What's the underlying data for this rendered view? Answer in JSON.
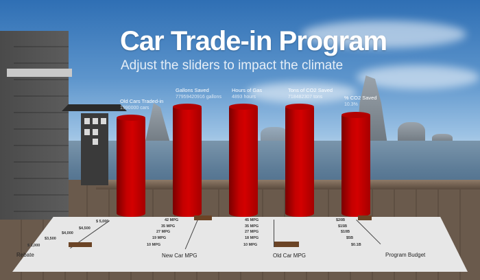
{
  "title": "Car Trade-in Program",
  "subtitle": "Adjust the sliders to impact the climate",
  "stats": [
    {
      "label": "Old Cars Traded-in",
      "value": "1990000 cars"
    },
    {
      "label": "Gallons Saved",
      "value": "77959420916 gallons"
    },
    {
      "label": "Hours of Gas",
      "value": "4893 hours"
    },
    {
      "label": "Tons of CO2 Saved",
      "value": "718482307 tons"
    },
    {
      "label": "% CO2 Saved",
      "value": "10.3%"
    }
  ],
  "sliders": [
    {
      "label": "Rebate",
      "ticks": [
        "$ 5,000",
        "$4,500",
        "$4,000",
        "$3,500",
        "$ 1,000"
      ]
    },
    {
      "label": "New Car MPG",
      "ticks": [
        "42 MPG",
        "35 MPG",
        "27 MPG",
        "19 MPG",
        "10 MPG"
      ]
    },
    {
      "label": "Old Car MPG",
      "ticks": [
        "45 MPG",
        "35 MPG",
        "27 MPG",
        "18 MPG",
        "10 MPG"
      ]
    },
    {
      "label": "Program Budget",
      "ticks": [
        "$20B",
        "$15B",
        "$10B",
        "$5B",
        "$0.1B"
      ]
    }
  ],
  "colors": {
    "bar": "#c40000",
    "handle": "#6b4426",
    "panel": "#e7e7e7"
  }
}
